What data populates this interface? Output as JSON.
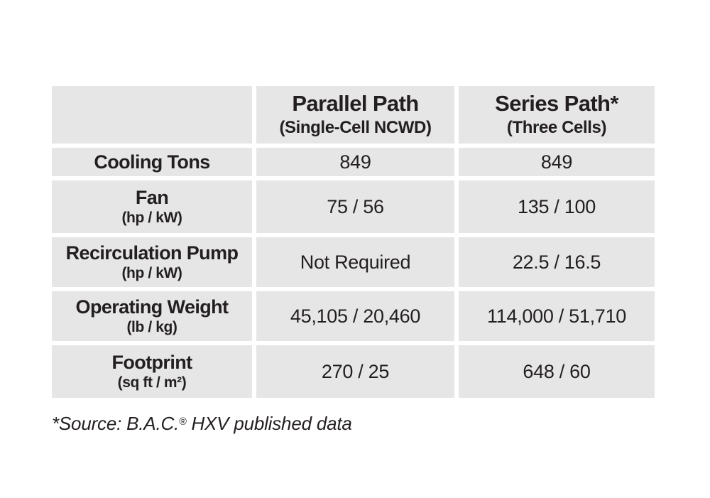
{
  "table": {
    "columns": [
      {
        "title": "",
        "subtitle": ""
      },
      {
        "title": "Parallel Path",
        "subtitle": "(Single-Cell NCWD)"
      },
      {
        "title": "Series Path*",
        "subtitle": "(Three Cells)"
      }
    ],
    "rows": [
      {
        "label": "Cooling Tons",
        "unit": "",
        "parallel": "849",
        "series": "849"
      },
      {
        "label": "Fan",
        "unit": "(hp / kW)",
        "parallel": "75 / 56",
        "series": "135 / 100"
      },
      {
        "label": "Recirculation Pump",
        "unit": "(hp / kW)",
        "parallel": "Not Required",
        "series": "22.5 / 16.5"
      },
      {
        "label": "Operating Weight",
        "unit": "(lb / kg)",
        "parallel": "45,105 / 20,460",
        "series": "114,000 / 51,710"
      },
      {
        "label": "Footprint",
        "unit": "(sq ft / m²)",
        "parallel": "270 / 25",
        "series": "648 / 60"
      }
    ]
  },
  "footnote": {
    "pre": "*Source: B.A.C.",
    "reg_mark": "®",
    "post": " HXV published data"
  },
  "colors": {
    "cell_background": "#e6e6e6",
    "text": "#231f20",
    "page_background": "#ffffff"
  }
}
